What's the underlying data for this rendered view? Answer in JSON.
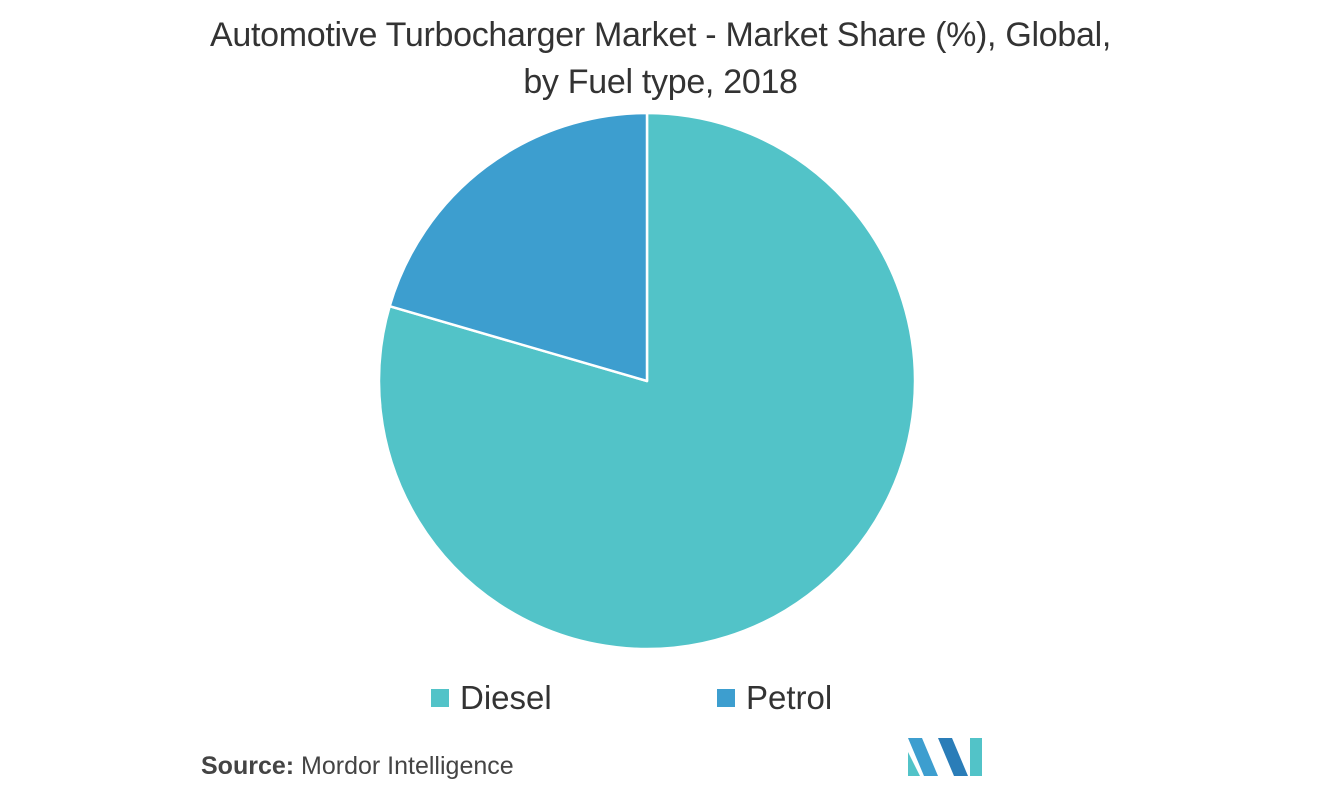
{
  "chart_data": {
    "type": "pie",
    "title": "Automotive Turbocharger Market - Market Share (%), Global, by Fuel type, 2018",
    "title_lines": [
      "Automotive Turbocharger Market - Market Share (%), Global,",
      "by Fuel type, 2018"
    ],
    "categories": [
      "Diesel",
      "Petrol"
    ],
    "values": [
      79.5,
      20.5
    ],
    "colors": [
      "#52c3c8",
      "#3d9ecf"
    ],
    "start": "12 o'clock, clockwise",
    "legend_position": "bottom"
  },
  "source": {
    "label": "Source:",
    "text": "Mordor Intelligence"
  },
  "logo": {
    "icon": "mordor-intelligence-logo",
    "colors": [
      "#52c3c8",
      "#3d9ecf",
      "#2a7db8"
    ]
  }
}
